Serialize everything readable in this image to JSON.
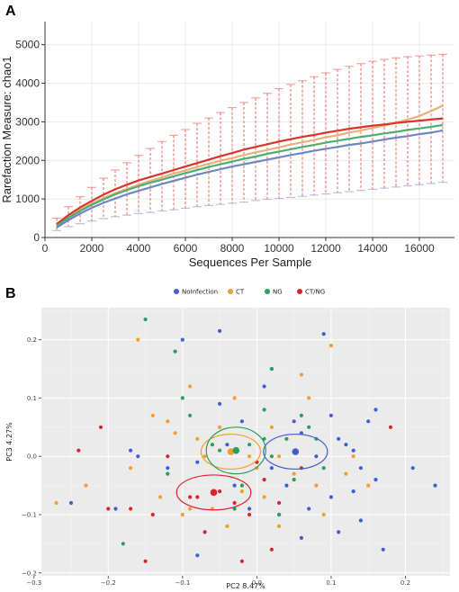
{
  "chart_data": [
    {
      "panel": "A",
      "type": "line",
      "xlabel": "Sequences Per Sample",
      "ylabel": "Rarefaction Measure: chao1",
      "xlim": [
        0,
        17500
      ],
      "ylim": [
        0,
        5600
      ],
      "xticks": [
        0,
        2000,
        4000,
        6000,
        8000,
        10000,
        12000,
        14000,
        16000
      ],
      "yticks": [
        0,
        1000,
        2000,
        3000,
        4000,
        5000
      ],
      "grid": true,
      "x": [
        500,
        1000,
        1500,
        2000,
        2500,
        3000,
        3500,
        4000,
        4500,
        5000,
        5500,
        6000,
        6500,
        7000,
        7500,
        8000,
        8500,
        9000,
        9500,
        10000,
        10500,
        11000,
        11500,
        12000,
        12500,
        13000,
        13500,
        14000,
        14500,
        15000,
        15500,
        16000,
        16500,
        17000
      ],
      "series": [
        {
          "color": "#e8b07a",
          "values": [
            320,
            530,
            720,
            880,
            1020,
            1150,
            1260,
            1370,
            1470,
            1560,
            1660,
            1740,
            1830,
            1910,
            1990,
            2060,
            2140,
            2210,
            2270,
            2340,
            2410,
            2470,
            2530,
            2600,
            2650,
            2720,
            2780,
            2840,
            2900,
            2980,
            3060,
            3150,
            3280,
            3420
          ]
        },
        {
          "color": "#d9342b",
          "values": [
            350,
            580,
            780,
            950,
            1110,
            1250,
            1370,
            1480,
            1570,
            1660,
            1750,
            1840,
            1930,
            2020,
            2110,
            2190,
            2280,
            2350,
            2420,
            2490,
            2550,
            2610,
            2660,
            2720,
            2770,
            2820,
            2860,
            2900,
            2930,
            2970,
            3000,
            3030,
            3060,
            3090
          ]
        },
        {
          "color": "#4caf6f",
          "values": [
            300,
            510,
            690,
            850,
            990,
            1120,
            1230,
            1330,
            1420,
            1500,
            1590,
            1670,
            1750,
            1830,
            1900,
            1970,
            2040,
            2100,
            2170,
            2230,
            2290,
            2350,
            2400,
            2460,
            2510,
            2560,
            2610,
            2650,
            2700,
            2740,
            2790,
            2830,
            2870,
            2920
          ]
        },
        {
          "color": "#6e86c4",
          "values": [
            260,
            450,
            620,
            770,
            900,
            1010,
            1120,
            1210,
            1300,
            1390,
            1470,
            1550,
            1630,
            1700,
            1770,
            1840,
            1900,
            1960,
            2020,
            2080,
            2140,
            2190,
            2250,
            2300,
            2350,
            2400,
            2440,
            2490,
            2540,
            2590,
            2630,
            2680,
            2720,
            2780
          ]
        }
      ],
      "error_band": {
        "color": "#f0807a",
        "upper": [
          500,
          800,
          1060,
          1300,
          1540,
          1750,
          1940,
          2130,
          2310,
          2490,
          2650,
          2800,
          2960,
          3100,
          3240,
          3370,
          3500,
          3620,
          3740,
          3860,
          3970,
          4070,
          4170,
          4270,
          4360,
          4440,
          4510,
          4570,
          4620,
          4660,
          4690,
          4710,
          4730,
          4750
        ],
        "lower": [
          180,
          280,
          360,
          430,
          490,
          540,
          580,
          620,
          650,
          690,
          720,
          760,
          800,
          830,
          860,
          890,
          920,
          960,
          990,
          1010,
          1040,
          1070,
          1100,
          1130,
          1160,
          1190,
          1220,
          1250,
          1280,
          1310,
          1340,
          1370,
          1400,
          1430
        ]
      }
    },
    {
      "panel": "B",
      "type": "scatter",
      "xlabel": "PC2 8.47%",
      "ylabel": "PC3 4.27%",
      "xlim": [
        -0.29,
        0.26
      ],
      "ylim": [
        -0.205,
        0.255
      ],
      "xticks": [
        -0.3,
        -0.2,
        -0.1,
        0.0,
        0.1,
        0.2
      ],
      "xtick_labels": [
        "−0.3",
        "−0.2",
        "−0.1",
        "0.0",
        "0.1",
        "0.2"
      ],
      "yticks": [
        -0.2,
        -0.1,
        0.0,
        0.1,
        0.2
      ],
      "ytick_labels": [
        "−0.2",
        "−0.1",
        "0.0",
        "0.1",
        "0.2"
      ],
      "grid": true,
      "background": "#ebebeb",
      "legend": "top",
      "series": [
        {
          "name": "NoInfection",
          "color": "#3f5fcf",
          "centroid": [
            0.052,
            0.008
          ],
          "ellipse": {
            "rx": 0.043,
            "ry": 0.03
          },
          "points": [
            [
              -0.25,
              -0.08
            ],
            [
              -0.19,
              -0.09
            ],
            [
              -0.17,
              0.01
            ],
            [
              -0.16,
              0.0
            ],
            [
              -0.12,
              -0.02
            ],
            [
              -0.1,
              0.2
            ],
            [
              -0.08,
              -0.01
            ],
            [
              -0.05,
              0.215
            ],
            [
              -0.05,
              0.09
            ],
            [
              -0.04,
              0.02
            ],
            [
              -0.03,
              -0.05
            ],
            [
              -0.02,
              0.06
            ],
            [
              -0.01,
              -0.09
            ],
            [
              0.01,
              0.12
            ],
            [
              0.02,
              -0.02
            ],
            [
              0.03,
              -0.1
            ],
            [
              0.04,
              -0.05
            ],
            [
              0.05,
              0.06
            ],
            [
              0.06,
              -0.14
            ],
            [
              0.07,
              -0.09
            ],
            [
              0.08,
              0.0
            ],
            [
              0.09,
              0.21
            ],
            [
              0.1,
              0.07
            ],
            [
              0.11,
              0.03
            ],
            [
              0.12,
              0.02
            ],
            [
              0.13,
              -0.06
            ],
            [
              0.14,
              -0.11
            ],
            [
              0.15,
              0.06
            ],
            [
              0.16,
              -0.04
            ],
            [
              0.17,
              -0.16
            ],
            [
              0.21,
              -0.02
            ],
            [
              0.24,
              -0.05
            ],
            [
              0.06,
              0.04
            ],
            [
              0.1,
              -0.07
            ],
            [
              0.13,
              0.01
            ],
            [
              0.16,
              0.08
            ],
            [
              -0.08,
              -0.17
            ],
            [
              0.02,
              0.15
            ],
            [
              0.14,
              -0.02
            ],
            [
              0.11,
              -0.13
            ]
          ]
        },
        {
          "name": "CT",
          "color": "#f0a02a",
          "centroid": [
            -0.035,
            0.008
          ],
          "ellipse": {
            "rx": 0.04,
            "ry": 0.03
          },
          "points": [
            [
              -0.27,
              -0.08
            ],
            [
              -0.23,
              -0.05
            ],
            [
              -0.17,
              -0.02
            ],
            [
              -0.16,
              0.2
            ],
            [
              -0.13,
              -0.07
            ],
            [
              -0.11,
              0.04
            ],
            [
              -0.1,
              -0.1
            ],
            [
              -0.09,
              0.12
            ],
            [
              -0.09,
              -0.09
            ],
            [
              -0.08,
              0.03
            ],
            [
              -0.07,
              0.0
            ],
            [
              -0.05,
              0.05
            ],
            [
              -0.04,
              -0.12
            ],
            [
              -0.03,
              0.1
            ],
            [
              -0.02,
              -0.06
            ],
            [
              -0.01,
              0.0
            ],
            [
              0.0,
              -0.02
            ],
            [
              0.01,
              -0.07
            ],
            [
              0.02,
              0.05
            ],
            [
              0.03,
              -0.12
            ],
            [
              0.04,
              0.03
            ],
            [
              0.05,
              -0.03
            ],
            [
              0.06,
              0.14
            ],
            [
              0.07,
              0.1
            ],
            [
              0.08,
              -0.05
            ],
            [
              0.1,
              0.19
            ],
            [
              0.12,
              -0.03
            ],
            [
              0.13,
              0.0
            ],
            [
              0.03,
              0.0
            ],
            [
              -0.14,
              0.07
            ],
            [
              -0.06,
              -0.09
            ],
            [
              0.09,
              -0.1
            ],
            [
              0.15,
              -0.05
            ],
            [
              -0.12,
              0.06
            ]
          ]
        },
        {
          "name": "NG",
          "color": "#2a9e5c",
          "centroid": [
            -0.028,
            0.01
          ],
          "ellipse": {
            "rx": 0.04,
            "ry": 0.04
          },
          "points": [
            [
              -0.18,
              -0.15
            ],
            [
              -0.15,
              0.235
            ],
            [
              -0.12,
              -0.03
            ],
            [
              -0.1,
              0.1
            ],
            [
              -0.09,
              0.07
            ],
            [
              -0.06,
              0.02
            ],
            [
              -0.05,
              0.01
            ],
            [
              -0.03,
              -0.09
            ],
            [
              -0.01,
              0.02
            ],
            [
              0.01,
              0.08
            ],
            [
              0.02,
              0.0
            ],
            [
              0.03,
              -0.1
            ],
            [
              0.04,
              0.03
            ],
            [
              0.05,
              -0.04
            ],
            [
              0.06,
              0.07
            ],
            [
              0.07,
              0.05
            ],
            [
              0.08,
              0.03
            ],
            [
              0.09,
              -0.02
            ],
            [
              0.02,
              0.15
            ],
            [
              -0.11,
              0.18
            ],
            [
              -0.02,
              -0.05
            ],
            [
              0.01,
              0.03
            ]
          ]
        },
        {
          "name": "CT/NG",
          "color": "#d6262c",
          "centroid": [
            -0.058,
            -0.062
          ],
          "ellipse": {
            "rx": 0.05,
            "ry": 0.03
          },
          "points": [
            [
              -0.24,
              0.01
            ],
            [
              -0.21,
              0.05
            ],
            [
              -0.2,
              -0.09
            ],
            [
              -0.17,
              -0.09
            ],
            [
              -0.15,
              -0.18
            ],
            [
              -0.14,
              -0.1
            ],
            [
              -0.12,
              0.0
            ],
            [
              -0.08,
              -0.07
            ],
            [
              -0.07,
              -0.13
            ],
            [
              -0.05,
              -0.06
            ],
            [
              -0.03,
              -0.08
            ],
            [
              -0.01,
              -0.1
            ],
            [
              0.01,
              -0.04
            ],
            [
              0.03,
              -0.08
            ],
            [
              0.06,
              -0.02
            ],
            [
              0.18,
              0.05
            ],
            [
              0.0,
              -0.01
            ],
            [
              -0.09,
              -0.07
            ],
            [
              -0.02,
              -0.18
            ],
            [
              0.02,
              -0.16
            ]
          ]
        }
      ]
    }
  ]
}
